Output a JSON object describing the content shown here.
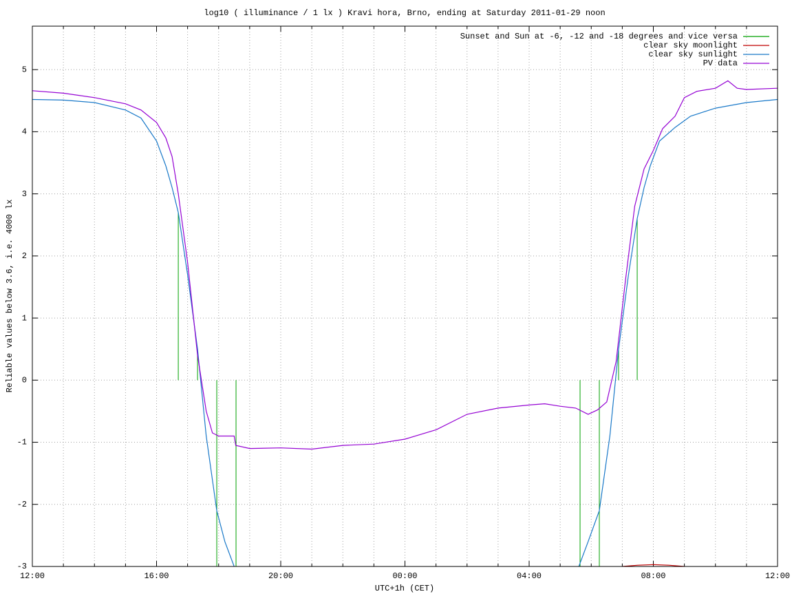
{
  "chart_data": {
    "type": "line",
    "title": "log10 ( illuminance / 1 lx ) Kravi hora, Brno, ending at Saturday 2011-01-29 noon",
    "xlabel": "UTC+1h (CET)",
    "ylabel": "Reliable values below 3.6, i.e. 4000 lx",
    "xlim": [
      0,
      24
    ],
    "ylim": [
      -3,
      5.7
    ],
    "xticks": [
      {
        "value": 0,
        "label": "12:00"
      },
      {
        "value": 4,
        "label": "16:00"
      },
      {
        "value": 8,
        "label": "20:00"
      },
      {
        "value": 12,
        "label": "00:00"
      },
      {
        "value": 16,
        "label": "04:00"
      },
      {
        "value": 20,
        "label": "08:00"
      },
      {
        "value": 24,
        "label": "12:00"
      }
    ],
    "xminorticks": [
      1,
      2,
      3,
      5,
      6,
      7,
      9,
      10,
      11,
      13,
      14,
      15,
      17,
      18,
      19,
      21,
      22,
      23
    ],
    "yticks": [
      -3,
      -2,
      -1,
      0,
      1,
      2,
      3,
      4,
      5
    ],
    "grid": true,
    "legend": "top-right",
    "series": [
      {
        "name": "Sunset and Sun at -6, -12 and -18 degrees and vice versa",
        "color": "#00a000",
        "style": "impulses",
        "x": [
          4.7,
          5.32,
          5.94,
          6.56,
          17.64,
          18.26,
          18.88,
          19.48
        ],
        "values": [
          2.7,
          0.5,
          -3,
          -3,
          -3,
          -3,
          0.5,
          2.6
        ]
      },
      {
        "name": "clear sky moonlight",
        "color": "#c00000",
        "style": "lines",
        "x": [
          19.0,
          19.5,
          20.0,
          20.5,
          21.0
        ],
        "values": [
          -3.0,
          -2.98,
          -2.97,
          -2.98,
          -3.0
        ]
      },
      {
        "name": "clear sky sunlight",
        "color": "#1878c8",
        "style": "lines",
        "x": [
          0,
          1,
          2,
          3,
          3.5,
          4,
          4.3,
          4.5,
          4.7,
          5.0,
          5.32,
          5.6,
          5.94,
          6.2,
          6.5,
          12,
          17.6,
          17.9,
          18.26,
          18.6,
          18.88,
          19.2,
          19.48,
          19.7,
          19.9,
          20.2,
          20.7,
          21.2,
          22,
          23,
          24
        ],
        "values": [
          4.52,
          4.51,
          4.47,
          4.35,
          4.22,
          3.85,
          3.45,
          3.1,
          2.7,
          1.7,
          0.5,
          -0.9,
          -2.1,
          -2.6,
          -3.0,
          null,
          -3.0,
          -2.6,
          -2.1,
          -0.9,
          0.5,
          1.7,
          2.6,
          3.1,
          3.45,
          3.85,
          4.07,
          4.25,
          4.38,
          4.47,
          4.52
        ]
      },
      {
        "name": "PV data",
        "color": "#9400d3",
        "style": "lines",
        "x": [
          0,
          1,
          2,
          3,
          3.5,
          4,
          4.3,
          4.5,
          4.7,
          5.0,
          5.32,
          5.6,
          5.8,
          6.0,
          6.5,
          6.55,
          7,
          8,
          9,
          10,
          11,
          12,
          13,
          14,
          15,
          16,
          16.5,
          17,
          17.5,
          17.9,
          18.2,
          18.5,
          18.8,
          19.1,
          19.4,
          19.7,
          20,
          20.3,
          20.7,
          21,
          21.4,
          22,
          22.4,
          22.7,
          23,
          24
        ],
        "values": [
          4.66,
          4.62,
          4.55,
          4.45,
          4.35,
          4.15,
          3.9,
          3.6,
          3.0,
          1.9,
          0.4,
          -0.5,
          -0.85,
          -0.9,
          -0.9,
          -1.05,
          -1.1,
          -1.09,
          -1.11,
          -1.05,
          -1.03,
          -0.95,
          -0.8,
          -0.55,
          -0.45,
          -0.4,
          -0.38,
          -0.42,
          -0.45,
          -0.55,
          -0.48,
          -0.35,
          0.3,
          1.6,
          2.8,
          3.4,
          3.7,
          4.05,
          4.25,
          4.55,
          4.65,
          4.7,
          4.82,
          4.7,
          4.68,
          4.7
        ]
      }
    ]
  }
}
